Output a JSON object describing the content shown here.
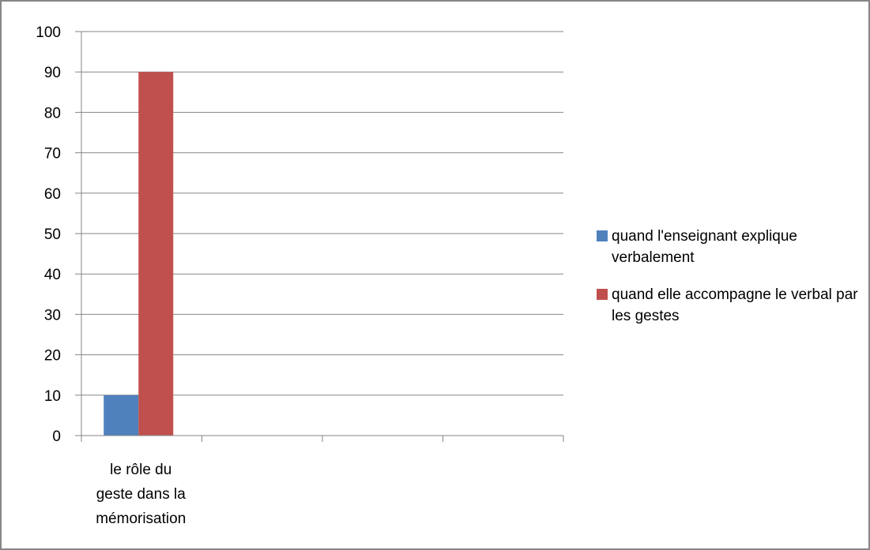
{
  "chart_data": {
    "type": "bar",
    "categories": [
      "le rôle du geste dans la mémorisation"
    ],
    "category_lines": [
      [
        "le rôle du",
        "geste dans la",
        "mémorisation"
      ]
    ],
    "slots": 4,
    "series": [
      {
        "name": "quand l'enseignant explique verbalement",
        "values": [
          10
        ],
        "color": "#4F81BD"
      },
      {
        "name": "quand elle accompagne le verbal par les gestes",
        "values": [
          90
        ],
        "color": "#C0504D"
      }
    ],
    "ylim": [
      0,
      100
    ],
    "yticks": [
      0,
      10,
      20,
      30,
      40,
      50,
      60,
      70,
      80,
      90,
      100
    ],
    "grid": true,
    "legend_position": "right",
    "title": "",
    "xlabel": "",
    "ylabel": ""
  },
  "colors": {
    "gridline": "#868686",
    "frame": "#868686"
  }
}
